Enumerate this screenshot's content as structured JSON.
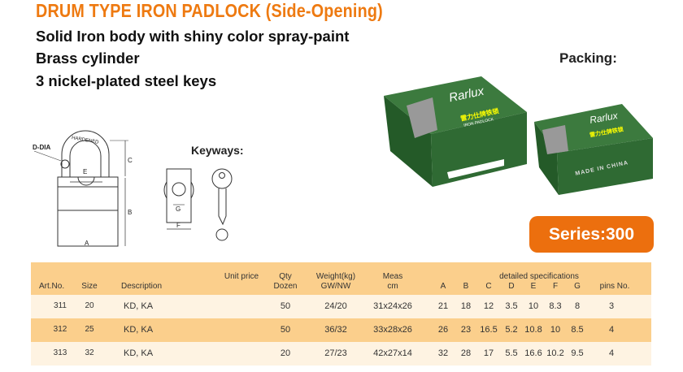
{
  "title": "DRUM TYPE IRON PADLOCK (Side-Opening)",
  "features": [
    "Solid Iron body with shiny color spray-paint",
    "Brass cylinder",
    "3 nickel-plated steel keys"
  ],
  "packing_label": "Packing:",
  "keyways_label": "Keyways:",
  "series_label": "Series:300",
  "diagram_labels": {
    "d_dia": "D-DIA",
    "hardened": "HARDENED",
    "a": "A",
    "b": "B",
    "c": "C",
    "e": "E",
    "f": "F",
    "g": "G"
  },
  "box_labels": {
    "brand": "Rarlux",
    "chinese": "雷力仕牌铁锁",
    "product": "IRON PADLOCK",
    "made_in": "MADE IN CHINA"
  },
  "colors": {
    "title": "#ee7a11",
    "series_bg": "#ec6f0e",
    "table_header": "#fbcf8c",
    "row_light": "#fef3e2",
    "box_green": "#2f6a33"
  },
  "table": {
    "headers": {
      "art_no": "Art.No.",
      "size": "Size",
      "description": "Description",
      "unit_price": "Unit price",
      "qty": [
        "Qty",
        "Dozen"
      ],
      "weight": [
        "Weight(kg)",
        "GW/NW"
      ],
      "meas": [
        "Meas",
        "cm"
      ],
      "detailed": "detailed specifications",
      "specs": [
        "A",
        "B",
        "C",
        "D",
        "E",
        "F",
        "G"
      ],
      "pins": "pins No."
    },
    "rows": [
      {
        "art_no": "311",
        "size": "20",
        "description": "KD, KA",
        "unit_price": "",
        "qty": "50",
        "weight": "24/20",
        "meas": "31x24x26",
        "specs": [
          "21",
          "18",
          "12",
          "3.5",
          "10",
          "8.3",
          "8"
        ],
        "pins": "3"
      },
      {
        "art_no": "312",
        "size": "25",
        "description": "KD, KA",
        "unit_price": "",
        "qty": "50",
        "weight": "36/32",
        "meas": "33x28x26",
        "specs": [
          "26",
          "23",
          "16.5",
          "5.2",
          "10.8",
          "10",
          "8.5"
        ],
        "pins": "4"
      },
      {
        "art_no": "313",
        "size": "32",
        "description": "KD, KA",
        "unit_price": "",
        "qty": "20",
        "weight": "27/23",
        "meas": "42x27x14",
        "specs": [
          "32",
          "28",
          "17",
          "5.5",
          "16.6",
          "10.2",
          "9.5"
        ],
        "pins": "4"
      }
    ]
  }
}
